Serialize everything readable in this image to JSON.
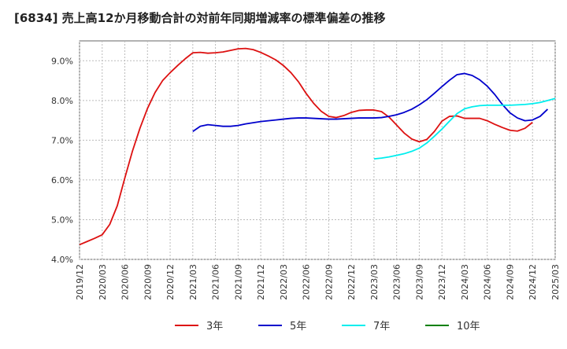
{
  "chart_data": {
    "type": "line",
    "title": "[6834]  売上高12か月移動合計の対前年同期増減率の標準偏差の推移",
    "xlabel": "",
    "ylabel": "",
    "ylim": [
      4.0,
      9.5
    ],
    "y_ticks": [
      4.0,
      5.0,
      6.0,
      7.0,
      8.0,
      9.0
    ],
    "y_tick_labels": [
      "4.0%",
      "5.0%",
      "6.0%",
      "7.0%",
      "8.0%",
      "9.0%"
    ],
    "x_tick_labels": [
      "2019/12",
      "2020/03",
      "2020/06",
      "2020/09",
      "2020/12",
      "2021/03",
      "2021/06",
      "2021/09",
      "2021/12",
      "2022/03",
      "2022/06",
      "2022/09",
      "2022/12",
      "2023/03",
      "2023/06",
      "2023/09",
      "2023/12",
      "2024/03",
      "2024/06",
      "2024/09",
      "2024/12",
      "2025/03"
    ],
    "grid": true,
    "legend_position": "bottom",
    "series": [
      {
        "name": "3年",
        "color": "#dd1111",
        "start_index": 0,
        "values": [
          4.37,
          4.45,
          4.53,
          4.62,
          4.88,
          5.35,
          6.05,
          6.72,
          7.3,
          7.8,
          8.2,
          8.5,
          8.7,
          8.88,
          9.05,
          9.2,
          9.21,
          9.19,
          9.2,
          9.22,
          9.26,
          9.3,
          9.31,
          9.28,
          9.21,
          9.12,
          9.02,
          8.88,
          8.7,
          8.47,
          8.18,
          7.93,
          7.73,
          7.6,
          7.57,
          7.62,
          7.7,
          7.75,
          7.76,
          7.76,
          7.72,
          7.58,
          7.38,
          7.18,
          7.03,
          6.96,
          7.02,
          7.22,
          7.48,
          7.6,
          7.61,
          7.55,
          7.55,
          7.55,
          7.49,
          7.4,
          7.32,
          7.25,
          7.23,
          7.3,
          7.45
        ]
      },
      {
        "name": "5年",
        "color": "#0000cc",
        "start_index": 15,
        "values": [
          7.22,
          7.35,
          7.39,
          7.37,
          7.35,
          7.35,
          7.37,
          7.41,
          7.44,
          7.47,
          7.49,
          7.51,
          7.53,
          7.55,
          7.56,
          7.56,
          7.55,
          7.54,
          7.53,
          7.53,
          7.54,
          7.55,
          7.56,
          7.56,
          7.56,
          7.57,
          7.6,
          7.64,
          7.7,
          7.78,
          7.89,
          8.02,
          8.18,
          8.35,
          8.51,
          8.65,
          8.68,
          8.63,
          8.52,
          8.36,
          8.15,
          7.9,
          7.69,
          7.56,
          7.49,
          7.51,
          7.6,
          7.78
        ]
      },
      {
        "name": "7年",
        "color": "#00eeee",
        "start_index": 39,
        "values": [
          6.53,
          6.55,
          6.58,
          6.62,
          6.66,
          6.72,
          6.8,
          6.93,
          7.1,
          7.28,
          7.48,
          7.67,
          7.79,
          7.84,
          7.87,
          7.88,
          7.88,
          7.88,
          7.88,
          7.89,
          7.9,
          7.92,
          7.95,
          8.0,
          8.05
        ]
      },
      {
        "name": "10年",
        "color": "#008000",
        "start_index": 0,
        "values": []
      }
    ]
  }
}
